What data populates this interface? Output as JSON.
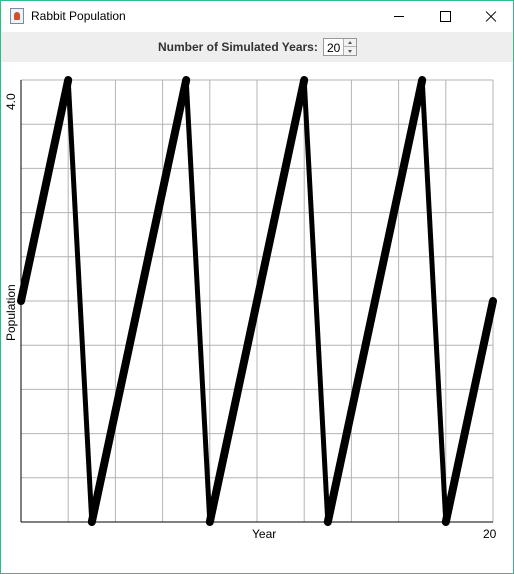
{
  "window": {
    "title": "Rabbit Population",
    "icon": "java-app-icon"
  },
  "controls": {
    "years_label": "Number of Simulated Years:",
    "years_value": "20"
  },
  "chart_data": {
    "type": "line",
    "xlabel": "Year",
    "ylabel": "Population",
    "x_max_label": "20",
    "y_max_label": "4.0",
    "xlim": [
      0,
      20
    ],
    "ylim": [
      0,
      4
    ],
    "grid": true,
    "series": [
      {
        "x": [
          0,
          2,
          3,
          7,
          8,
          12,
          13,
          17,
          18,
          20
        ],
        "values": [
          2,
          4,
          0,
          4,
          0,
          4,
          0,
          4,
          0,
          2
        ]
      }
    ]
  }
}
